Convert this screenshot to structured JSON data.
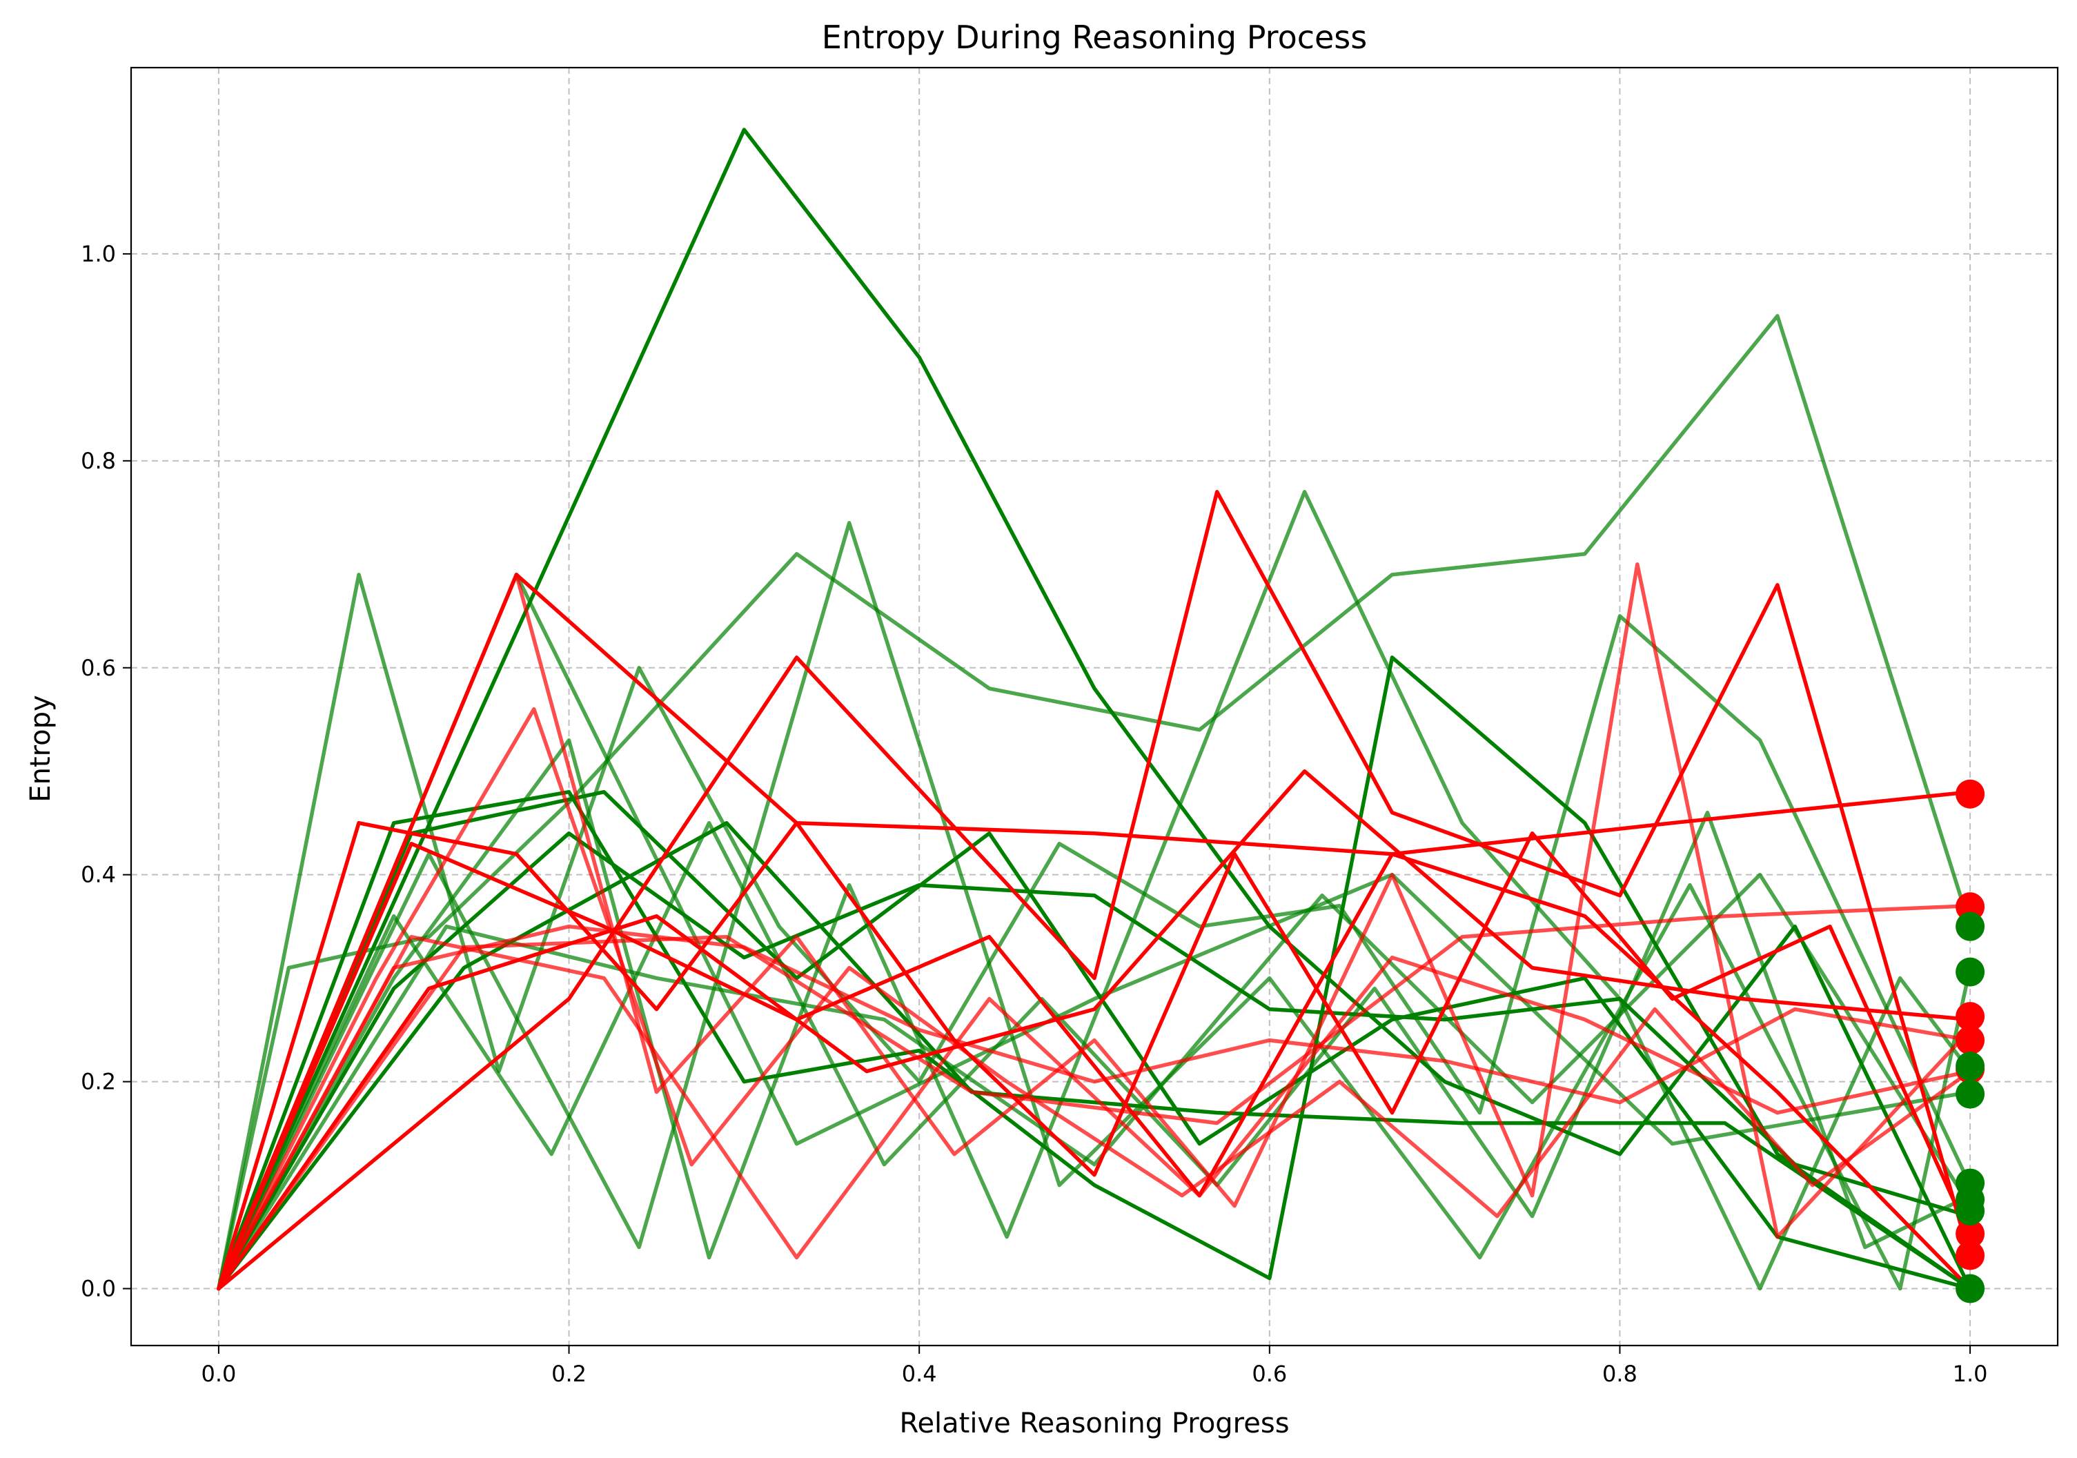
{
  "chart_data": {
    "type": "line",
    "title": "Entropy During Reasoning Process",
    "xlabel": "Relative Reasoning Progress",
    "ylabel": "Entropy",
    "xlim": [
      -0.05,
      1.05
    ],
    "ylim": [
      -0.055,
      1.18
    ],
    "xticks": [
      0.0,
      0.2,
      0.4,
      0.6,
      0.8,
      1.0
    ],
    "xtick_labels": [
      "0.0",
      "0.2",
      "0.4",
      "0.6",
      "0.8",
      "1.0"
    ],
    "yticks": [
      0.0,
      0.2,
      0.4,
      0.6,
      0.8,
      1.0
    ],
    "ytick_labels": [
      "0.0",
      "0.2",
      "0.4",
      "0.6",
      "0.8",
      "1.0"
    ],
    "grid": true,
    "legend": "none",
    "colors": {
      "incorrect": "#ff0000",
      "correct": "#008000"
    },
    "series": [
      {
        "group": "correct",
        "alpha": 1.0,
        "x": [
          0.0,
          0.3,
          0.4,
          0.5,
          0.6,
          0.7,
          0.8,
          0.9,
          1.0
        ],
        "y": [
          0.0,
          1.12,
          0.9,
          0.58,
          0.35,
          0.2,
          0.13,
          0.35,
          0.0
        ]
      },
      {
        "group": "correct",
        "alpha": 0.7,
        "x": [
          0.0,
          0.04,
          0.12,
          0.2,
          0.33,
          0.44,
          0.56,
          0.67,
          0.78,
          0.89,
          1.0
        ],
        "y": [
          0.0,
          0.31,
          0.34,
          0.47,
          0.71,
          0.58,
          0.54,
          0.69,
          0.71,
          0.94,
          0.35
        ]
      },
      {
        "group": "correct",
        "alpha": 0.7,
        "x": [
          0.0,
          0.08,
          0.16,
          0.24,
          0.32,
          0.4,
          0.48,
          0.56,
          0.64,
          0.72,
          0.8,
          0.88,
          1.0
        ],
        "y": [
          0.0,
          0.69,
          0.21,
          0.6,
          0.35,
          0.2,
          0.43,
          0.35,
          0.37,
          0.17,
          0.65,
          0.53,
          0.1
        ]
      },
      {
        "group": "correct",
        "alpha": 0.7,
        "x": [
          0.0,
          0.12,
          0.24,
          0.36,
          0.48,
          0.6,
          0.72,
          0.84,
          0.96,
          1.0
        ],
        "y": [
          0.0,
          0.42,
          0.04,
          0.74,
          0.1,
          0.3,
          0.03,
          0.39,
          0.0,
          0.31
        ]
      },
      {
        "group": "correct",
        "alpha": 0.7,
        "x": [
          0.0,
          0.1,
          0.19,
          0.28,
          0.38,
          0.47,
          0.57,
          0.66,
          0.75,
          0.85,
          0.94,
          1.0
        ],
        "y": [
          0.0,
          0.36,
          0.13,
          0.45,
          0.12,
          0.28,
          0.1,
          0.29,
          0.07,
          0.46,
          0.04,
          0.09
        ]
      },
      {
        "group": "correct",
        "alpha": 0.7,
        "x": [
          0.0,
          0.1,
          0.2,
          0.28,
          0.36,
          0.45,
          0.54,
          0.62,
          0.71,
          0.8,
          0.88,
          0.96,
          1.0
        ],
        "y": [
          0.0,
          0.3,
          0.53,
          0.03,
          0.39,
          0.05,
          0.43,
          0.77,
          0.45,
          0.28,
          0.0,
          0.3,
          0.21
        ]
      },
      {
        "group": "correct",
        "alpha": 0.7,
        "x": [
          0.0,
          0.17,
          0.33,
          0.5,
          0.67,
          0.83,
          1.0
        ],
        "y": [
          0.0,
          0.69,
          0.14,
          0.28,
          0.4,
          0.14,
          0.19
        ]
      },
      {
        "group": "correct",
        "alpha": 0.7,
        "x": [
          0.0,
          0.13,
          0.25,
          0.38,
          0.5,
          0.63,
          0.75,
          0.88,
          1.0
        ],
        "y": [
          0.0,
          0.35,
          0.3,
          0.26,
          0.12,
          0.38,
          0.18,
          0.4,
          0.08
        ]
      },
      {
        "group": "correct",
        "alpha": 1.0,
        "x": [
          0.0,
          0.1,
          0.2,
          0.3,
          0.4,
          0.5,
          0.6,
          0.67,
          0.78,
          0.89,
          1.0
        ],
        "y": [
          0.0,
          0.45,
          0.48,
          0.2,
          0.23,
          0.1,
          0.01,
          0.61,
          0.45,
          0.13,
          0.0
        ]
      },
      {
        "group": "correct",
        "alpha": 1.0,
        "x": [
          0.0,
          0.1,
          0.2,
          0.3,
          0.4,
          0.5,
          0.6,
          0.7,
          0.8,
          0.9,
          1.0
        ],
        "y": [
          0.0,
          0.29,
          0.44,
          0.32,
          0.39,
          0.38,
          0.27,
          0.26,
          0.28,
          0.12,
          0.07
        ]
      },
      {
        "group": "correct",
        "alpha": 1.0,
        "x": [
          0.0,
          0.11,
          0.22,
          0.33,
          0.44,
          0.56,
          0.67,
          0.78,
          0.89,
          1.0
        ],
        "y": [
          0.0,
          0.44,
          0.48,
          0.3,
          0.44,
          0.14,
          0.26,
          0.3,
          0.05,
          0.0
        ]
      },
      {
        "group": "correct",
        "alpha": 1.0,
        "x": [
          0.0,
          0.14,
          0.29,
          0.43,
          0.57,
          0.71,
          0.86,
          1.0
        ],
        "y": [
          0.0,
          0.31,
          0.45,
          0.19,
          0.17,
          0.16,
          0.16,
          0.0
        ]
      },
      {
        "group": "incorrect",
        "alpha": 1.0,
        "x": [
          0.0,
          0.17,
          0.33,
          0.5,
          0.67,
          0.83,
          1.0
        ],
        "y": [
          0.0,
          0.69,
          0.45,
          0.44,
          0.42,
          0.45,
          0.48
        ]
      },
      {
        "group": "incorrect",
        "alpha": 1.0,
        "x": [
          0.0,
          0.2,
          0.33,
          0.5,
          0.57,
          0.67,
          0.8,
          0.89,
          1.0
        ],
        "y": [
          0.0,
          0.28,
          0.61,
          0.3,
          0.77,
          0.46,
          0.38,
          0.68,
          0.03
        ]
      },
      {
        "group": "incorrect",
        "alpha": 0.7,
        "x": [
          0.0,
          0.17,
          0.25,
          0.33,
          0.42,
          0.5,
          0.58,
          0.67,
          0.75,
          0.81,
          0.89,
          1.0
        ],
        "y": [
          0.0,
          0.69,
          0.19,
          0.34,
          0.13,
          0.24,
          0.08,
          0.4,
          0.09,
          0.7,
          0.05,
          0.25
        ]
      },
      {
        "group": "incorrect",
        "alpha": 0.7,
        "x": [
          0.0,
          0.09,
          0.18,
          0.27,
          0.36,
          0.45,
          0.55,
          0.64,
          0.73,
          0.82,
          0.91,
          1.0
        ],
        "y": [
          0.0,
          0.3,
          0.56,
          0.12,
          0.31,
          0.2,
          0.09,
          0.2,
          0.07,
          0.27,
          0.1,
          0.21
        ]
      },
      {
        "group": "incorrect",
        "alpha": 1.0,
        "x": [
          0.0,
          0.08,
          0.17,
          0.25,
          0.33,
          0.42,
          0.5,
          0.58,
          0.67,
          0.75,
          0.83,
          0.92,
          1.0
        ],
        "y": [
          0.0,
          0.45,
          0.42,
          0.27,
          0.45,
          0.24,
          0.11,
          0.42,
          0.17,
          0.44,
          0.28,
          0.35,
          0.05
        ]
      },
      {
        "group": "incorrect",
        "alpha": 0.7,
        "x": [
          0.0,
          0.1,
          0.2,
          0.3,
          0.4,
          0.5,
          0.6,
          0.7,
          0.8,
          0.9,
          1.0
        ],
        "y": [
          0.0,
          0.31,
          0.35,
          0.33,
          0.25,
          0.2,
          0.24,
          0.22,
          0.18,
          0.27,
          0.24
        ]
      },
      {
        "group": "incorrect",
        "alpha": 1.0,
        "x": [
          0.0,
          0.12,
          0.25,
          0.37,
          0.5,
          0.62,
          0.75,
          0.87,
          1.0
        ],
        "y": [
          0.0,
          0.29,
          0.36,
          0.21,
          0.27,
          0.5,
          0.31,
          0.28,
          0.26
        ]
      },
      {
        "group": "incorrect",
        "alpha": 0.7,
        "x": [
          0.0,
          0.14,
          0.29,
          0.43,
          0.57,
          0.71,
          0.86,
          1.0
        ],
        "y": [
          0.0,
          0.33,
          0.34,
          0.19,
          0.16,
          0.34,
          0.36,
          0.37
        ]
      },
      {
        "group": "incorrect",
        "alpha": 0.7,
        "x": [
          0.0,
          0.11,
          0.22,
          0.33,
          0.44,
          0.56,
          0.67,
          0.78,
          0.89,
          1.0
        ],
        "y": [
          0.0,
          0.34,
          0.3,
          0.03,
          0.28,
          0.09,
          0.32,
          0.26,
          0.17,
          0.21
        ]
      },
      {
        "group": "incorrect",
        "alpha": 1.0,
        "x": [
          0.0,
          0.11,
          0.22,
          0.33,
          0.44,
          0.56,
          0.67,
          0.78,
          0.89,
          1.0
        ],
        "y": [
          0.0,
          0.43,
          0.35,
          0.26,
          0.34,
          0.09,
          0.42,
          0.36,
          0.19,
          0.0
        ]
      }
    ],
    "endpoints": [
      {
        "group": "incorrect",
        "x": 1.0,
        "y": 0.478
      },
      {
        "group": "incorrect",
        "x": 1.0,
        "y": 0.369
      },
      {
        "group": "incorrect",
        "x": 1.0,
        "y": 0.263
      },
      {
        "group": "incorrect",
        "x": 1.0,
        "y": 0.24
      },
      {
        "group": "incorrect",
        "x": 1.0,
        "y": 0.212
      },
      {
        "group": "incorrect",
        "x": 1.0,
        "y": 0.053
      },
      {
        "group": "incorrect",
        "x": 1.0,
        "y": 0.032
      },
      {
        "group": "correct",
        "x": 1.0,
        "y": 0.35
      },
      {
        "group": "correct",
        "x": 1.0,
        "y": 0.306
      },
      {
        "group": "correct",
        "x": 1.0,
        "y": 0.215
      },
      {
        "group": "correct",
        "x": 1.0,
        "y": 0.188
      },
      {
        "group": "correct",
        "x": 1.0,
        "y": 0.102
      },
      {
        "group": "correct",
        "x": 1.0,
        "y": 0.086
      },
      {
        "group": "correct",
        "x": 1.0,
        "y": 0.075
      },
      {
        "group": "correct",
        "x": 1.0,
        "y": 0.0
      }
    ]
  }
}
